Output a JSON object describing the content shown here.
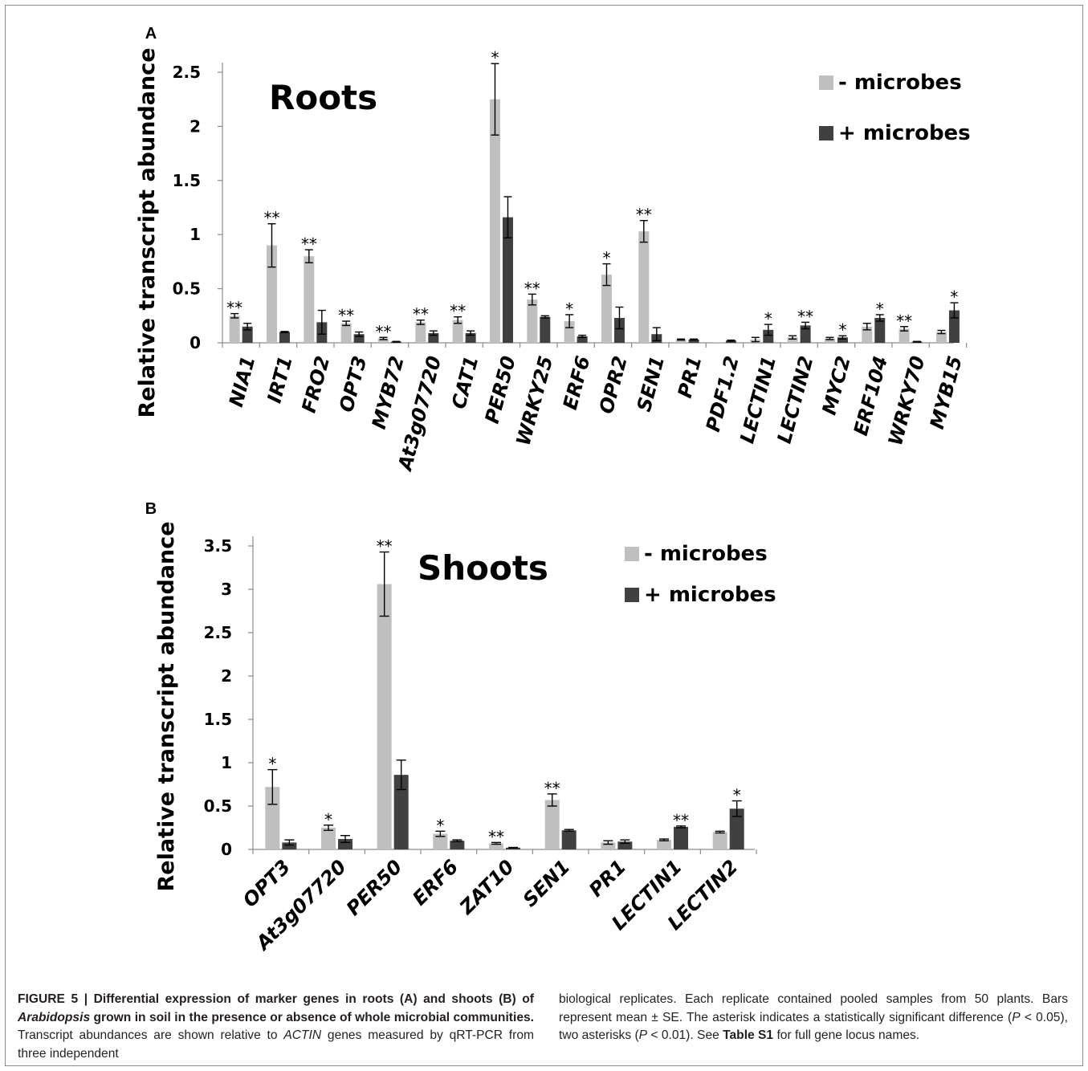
{
  "figure": {
    "caption_left": {
      "label": "FIGURE 5 | ",
      "bold_1": "Differential expression of marker genes in roots (A) and shoots (B) of ",
      "bold_ital": "Arabidopsis",
      "bold_2": " grown in soil in the presence or absence of whole microbial communities.",
      "text_1": " Transcript abundances are shown relative to ",
      "text_ital": "ACTIN",
      "text_2": " genes measured by qRT-PCR from three independent"
    },
    "caption_right": {
      "text_1": "biological replicates. Each replicate contained pooled samples from 50 plants. Bars represent mean ± SE. The asterisk indicates a statistically significant difference (",
      "p1": "P",
      "text_2": " < 0.05), two asterisks (",
      "p2": "P",
      "text_3": " < 0.01). See ",
      "table": "Table S1",
      "text_4": " for full gene locus names."
    }
  },
  "chart_data": [
    {
      "panel_label": "A",
      "type": "bar",
      "title": "Roots",
      "ylabel": "Relative transcript abundance",
      "ylim": [
        0,
        2.5
      ],
      "yticks": [
        "0",
        "0.5",
        "1",
        "1.5",
        "2",
        "2.5"
      ],
      "ytick_values": [
        0,
        0.5,
        1,
        1.5,
        2,
        2.5
      ],
      "categories": [
        "NIA1",
        "IRT1",
        "FRO2",
        "OPT3",
        "MYB72",
        "At3g07720",
        "CAT1",
        "PER50",
        "WRKY25",
        "ERF6",
        "OPR2",
        "SEN1",
        "PR1",
        "PDF1.2",
        "LECTIN1",
        "LECTIN2",
        "MYC2",
        "ERF104",
        "WRKY70",
        "MYB15"
      ],
      "legend_position": "top-right",
      "series": [
        {
          "name": "- microbes",
          "color": "#bfbfbf",
          "values": [
            0.25,
            0.9,
            0.8,
            0.18,
            0.04,
            0.19,
            0.21,
            2.25,
            0.4,
            0.2,
            0.63,
            1.03,
            0.03,
            0.0,
            0.03,
            0.05,
            0.04,
            0.15,
            0.13,
            0.1
          ],
          "errors": [
            0.02,
            0.2,
            0.06,
            0.02,
            0.01,
            0.02,
            0.03,
            0.33,
            0.05,
            0.06,
            0.1,
            0.1,
            0.005,
            0.0,
            0.02,
            0.015,
            0.01,
            0.03,
            0.02,
            0.015
          ]
        },
        {
          "name": "+ microbes",
          "color": "#404040",
          "values": [
            0.15,
            0.1,
            0.19,
            0.08,
            0.01,
            0.09,
            0.09,
            1.16,
            0.24,
            0.06,
            0.23,
            0.08,
            0.03,
            0.02,
            0.12,
            0.16,
            0.05,
            0.23,
            0.01,
            0.3
          ],
          "errors": [
            0.03,
            0.005,
            0.11,
            0.02,
            0.003,
            0.02,
            0.02,
            0.19,
            0.01,
            0.01,
            0.1,
            0.06,
            0.005,
            0.005,
            0.05,
            0.03,
            0.015,
            0.03,
            0.003,
            0.07
          ]
        }
      ],
      "significance": [
        "**",
        "**",
        "**",
        "**",
        "**",
        "**",
        "**",
        "*",
        "**",
        "*",
        "*",
        "**",
        "",
        "",
        "*",
        "**",
        "*",
        "*",
        "**",
        "*"
      ]
    },
    {
      "panel_label": "B",
      "type": "bar",
      "title": "Shoots",
      "ylabel": "Relative transcript abundance",
      "ylim": [
        0,
        3.5
      ],
      "yticks": [
        "0",
        "0.5",
        "1",
        "1.5",
        "2",
        "2.5",
        "3",
        "3.5"
      ],
      "ytick_values": [
        0,
        0.5,
        1,
        1.5,
        2,
        2.5,
        3,
        3.5
      ],
      "categories": [
        "OPT3",
        "At3g07720",
        "PER50",
        "ERF6",
        "ZAT10",
        "SEN1",
        "PR1",
        "LECTIN1",
        "LECTIN2"
      ],
      "legend_position": "top-right",
      "series": [
        {
          "name": "- microbes",
          "color": "#bfbfbf",
          "values": [
            0.72,
            0.25,
            3.06,
            0.18,
            0.07,
            0.57,
            0.08,
            0.11,
            0.2
          ],
          "errors": [
            0.2,
            0.03,
            0.37,
            0.03,
            0.01,
            0.07,
            0.02,
            0.01,
            0.01
          ]
        },
        {
          "name": "+ microbes",
          "color": "#404040",
          "values": [
            0.08,
            0.12,
            0.86,
            0.1,
            0.02,
            0.22,
            0.09,
            0.26,
            0.47
          ],
          "errors": [
            0.03,
            0.04,
            0.17,
            0.01,
            0.003,
            0.01,
            0.02,
            0.01,
            0.09
          ]
        }
      ],
      "significance": [
        "*",
        "*",
        "**",
        "*",
        "**",
        "**",
        "",
        "**",
        "*"
      ]
    }
  ]
}
